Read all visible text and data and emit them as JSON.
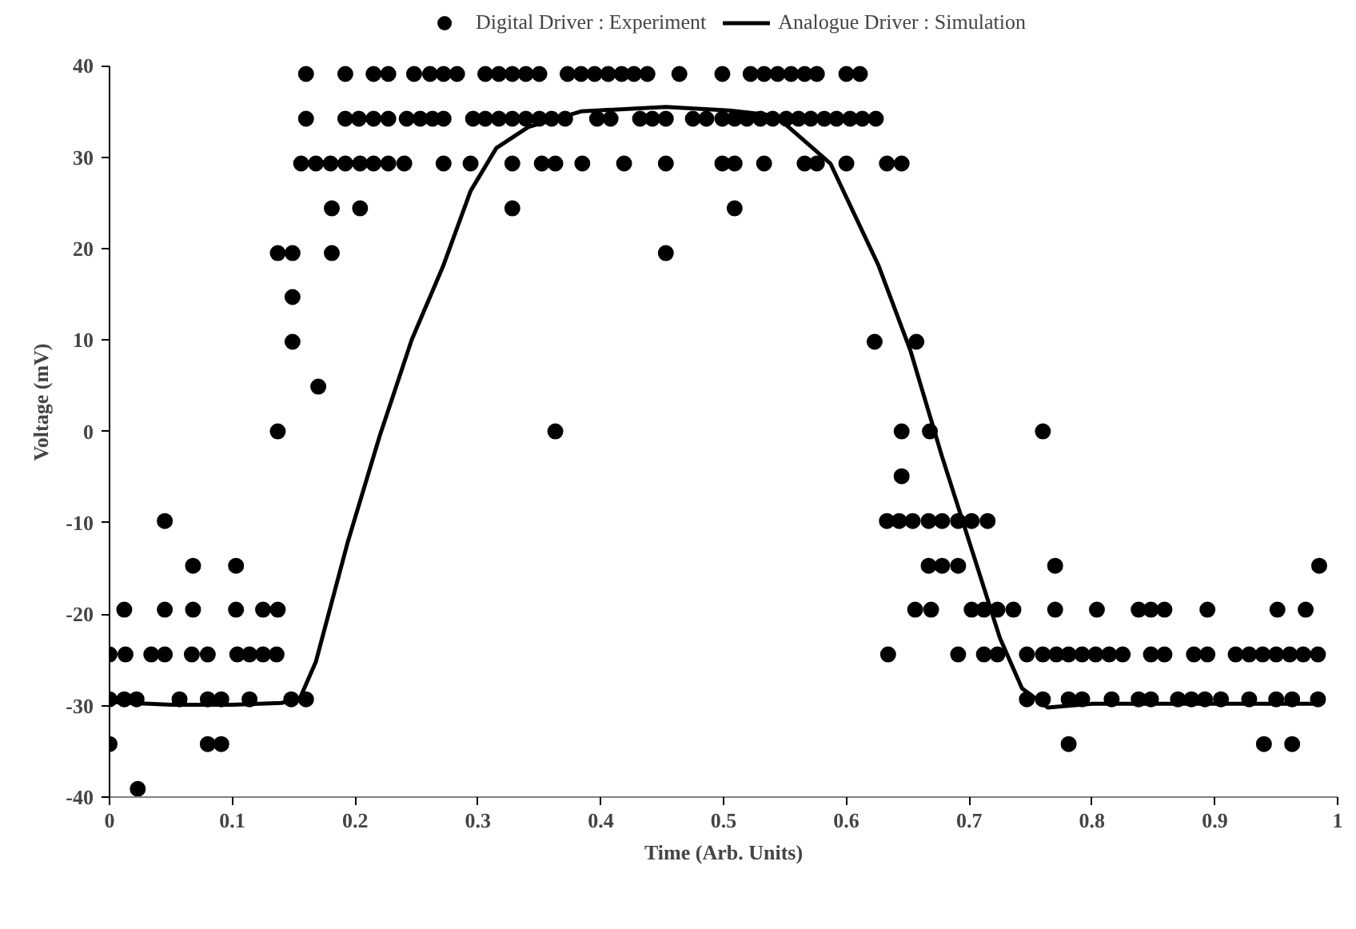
{
  "chart_data": {
    "type": "scatter",
    "xlabel": "Time (Arb. Units)",
    "ylabel": "Voltage (mV)",
    "xlim": [
      0,
      1
    ],
    "xticks": [
      0,
      0.1,
      0.2,
      0.3,
      0.4,
      0.5,
      0.6,
      0.7,
      0.8,
      0.9,
      1
    ],
    "ylim": [
      -40,
      40
    ],
    "yticks": [
      -40,
      -30,
      -20,
      -10,
      0,
      10,
      20,
      30,
      40
    ],
    "grid": false,
    "legend": "top",
    "series": [
      {
        "name": "Digital Driver : Experiment",
        "marker": "circle",
        "color": "#000000",
        "x": [
          0.16,
          0.192,
          0.215,
          0.227,
          0.248,
          0.261,
          0.272,
          0.283,
          0.306,
          0.317,
          0.328,
          0.339,
          0.35,
          0.373,
          0.384,
          0.395,
          0.406,
          0.417,
          0.427,
          0.438,
          0.464,
          0.499,
          0.522,
          0.533,
          0.544,
          0.555,
          0.566,
          0.576,
          0.6,
          0.611,
          0.16,
          0.192,
          0.203,
          0.215,
          0.227,
          0.242,
          0.253,
          0.263,
          0.272,
          0.296,
          0.306,
          0.317,
          0.328,
          0.339,
          0.35,
          0.36,
          0.371,
          0.397,
          0.408,
          0.432,
          0.442,
          0.453,
          0.475,
          0.486,
          0.499,
          0.509,
          0.519,
          0.53,
          0.54,
          0.551,
          0.561,
          0.571,
          0.582,
          0.592,
          0.603,
          0.613,
          0.624,
          0.156,
          0.168,
          0.18,
          0.192,
          0.204,
          0.215,
          0.227,
          0.24,
          0.272,
          0.294,
          0.328,
          0.352,
          0.363,
          0.385,
          0.419,
          0.453,
          0.499,
          0.509,
          0.533,
          0.566,
          0.576,
          0.6,
          0.633,
          0.645,
          0.181,
          0.204,
          0.328,
          0.509,
          0.137,
          0.149,
          0.181,
          0.453,
          0.149,
          0.149,
          0.623,
          0.657,
          0.17,
          0.137,
          0.363,
          0.645,
          0.668,
          0.76,
          0.645,
          0.045,
          0.633,
          0.643,
          0.654,
          0.667,
          0.678,
          0.691,
          0.702,
          0.715,
          0.068,
          0.103,
          0.667,
          0.678,
          0.691,
          0.77,
          0.985,
          0.012,
          0.045,
          0.068,
          0.103,
          0.125,
          0.137,
          0.656,
          0.669,
          0.702,
          0.712,
          0.723,
          0.736,
          0.77,
          0.804,
          0.838,
          0.848,
          0.859,
          0.894,
          0.951,
          0.974,
          0.0,
          0.013,
          0.034,
          0.045,
          0.067,
          0.08,
          0.104,
          0.114,
          0.125,
          0.136,
          0.634,
          0.691,
          0.712,
          0.723,
          0.747,
          0.76,
          0.771,
          0.781,
          0.792,
          0.803,
          0.814,
          0.825,
          0.848,
          0.859,
          0.883,
          0.894,
          0.917,
          0.928,
          0.939,
          0.95,
          0.961,
          0.972,
          0.984,
          0.0,
          0.012,
          0.022,
          0.057,
          0.08,
          0.091,
          0.114,
          0.148,
          0.16,
          0.747,
          0.76,
          0.781,
          0.792,
          0.816,
          0.838,
          0.848,
          0.87,
          0.881,
          0.892,
          0.905,
          0.928,
          0.95,
          0.963,
          0.984,
          0.0,
          0.08,
          0.091,
          0.781,
          0.94,
          0.963,
          0.023
        ],
        "values": [
          39.1,
          39.1,
          39.1,
          39.1,
          39.1,
          39.1,
          39.1,
          39.1,
          39.1,
          39.1,
          39.1,
          39.1,
          39.1,
          39.1,
          39.1,
          39.1,
          39.1,
          39.1,
          39.1,
          39.1,
          39.1,
          39.1,
          39.1,
          39.1,
          39.1,
          39.1,
          39.1,
          39.1,
          39.1,
          39.1,
          34.2,
          34.2,
          34.2,
          34.2,
          34.2,
          34.2,
          34.2,
          34.2,
          34.2,
          34.2,
          34.2,
          34.2,
          34.2,
          34.2,
          34.2,
          34.2,
          34.2,
          34.2,
          34.2,
          34.2,
          34.2,
          34.2,
          34.2,
          34.2,
          34.2,
          34.2,
          34.2,
          34.2,
          34.2,
          34.2,
          34.2,
          34.2,
          34.2,
          34.2,
          34.2,
          34.2,
          34.2,
          29.3,
          29.3,
          29.3,
          29.3,
          29.3,
          29.3,
          29.3,
          29.3,
          29.3,
          29.3,
          29.3,
          29.3,
          29.3,
          29.3,
          29.3,
          29.3,
          29.3,
          29.3,
          29.3,
          29.3,
          29.3,
          29.3,
          29.3,
          29.3,
          24.4,
          24.4,
          24.4,
          24.4,
          19.5,
          19.5,
          19.5,
          19.5,
          14.7,
          9.8,
          9.8,
          9.8,
          4.9,
          0,
          0,
          0,
          0,
          0,
          -4.9,
          -9.8,
          -9.8,
          -9.8,
          -9.8,
          -9.8,
          -9.8,
          -9.8,
          -9.8,
          -9.8,
          -14.7,
          -14.7,
          -14.7,
          -14.7,
          -14.7,
          -14.7,
          -14.7,
          -19.5,
          -19.5,
          -19.5,
          -19.5,
          -19.5,
          -19.5,
          -19.5,
          -19.5,
          -19.5,
          -19.5,
          -19.5,
          -19.5,
          -19.5,
          -19.5,
          -19.5,
          -19.5,
          -19.5,
          -19.5,
          -19.5,
          -19.5,
          -24.4,
          -24.4,
          -24.4,
          -24.4,
          -24.4,
          -24.4,
          -24.4,
          -24.4,
          -24.4,
          -24.4,
          -24.4,
          -24.4,
          -24.4,
          -24.4,
          -24.4,
          -24.4,
          -24.4,
          -24.4,
          -24.4,
          -24.4,
          -24.4,
          -24.4,
          -24.4,
          -24.4,
          -24.4,
          -24.4,
          -24.4,
          -24.4,
          -24.4,
          -24.4,
          -24.4,
          -24.4,
          -24.4,
          -29.3,
          -29.3,
          -29.3,
          -29.3,
          -29.3,
          -29.3,
          -29.3,
          -29.3,
          -29.3,
          -29.3,
          -29.3,
          -29.3,
          -29.3,
          -29.3,
          -29.3,
          -29.3,
          -29.3,
          -29.3,
          -29.3,
          -29.3,
          -29.3,
          -29.3,
          -29.3,
          -29.3,
          -34.2,
          -34.2,
          -34.2,
          -34.2,
          -34.2,
          -34.2,
          -39.1
        ]
      },
      {
        "name": "Analogue Driver : Simulation",
        "type": "line",
        "line_style": "solid",
        "color": "#000000",
        "x": [
          0,
          0.05,
          0.1,
          0.14,
          0.155,
          0.168,
          0.194,
          0.22,
          0.246,
          0.272,
          0.294,
          0.315,
          0.341,
          0.384,
          0.453,
          0.505,
          0.544,
          0.552,
          0.587,
          0.626,
          0.652,
          0.678,
          0.703,
          0.725,
          0.743,
          0.764,
          0.8,
          0.9,
          0.985
        ],
        "values": [
          -29.6,
          -29.9,
          -29.9,
          -29.7,
          -29.2,
          -25.2,
          -12.1,
          -0.5,
          10,
          18.2,
          26.3,
          31,
          33.3,
          35,
          35.5,
          35.1,
          34.5,
          33.4,
          29.3,
          18.2,
          8.9,
          -2.8,
          -13.3,
          -22.6,
          -28.1,
          -30.2,
          -29.8,
          -29.8,
          -29.8
        ]
      }
    ]
  }
}
